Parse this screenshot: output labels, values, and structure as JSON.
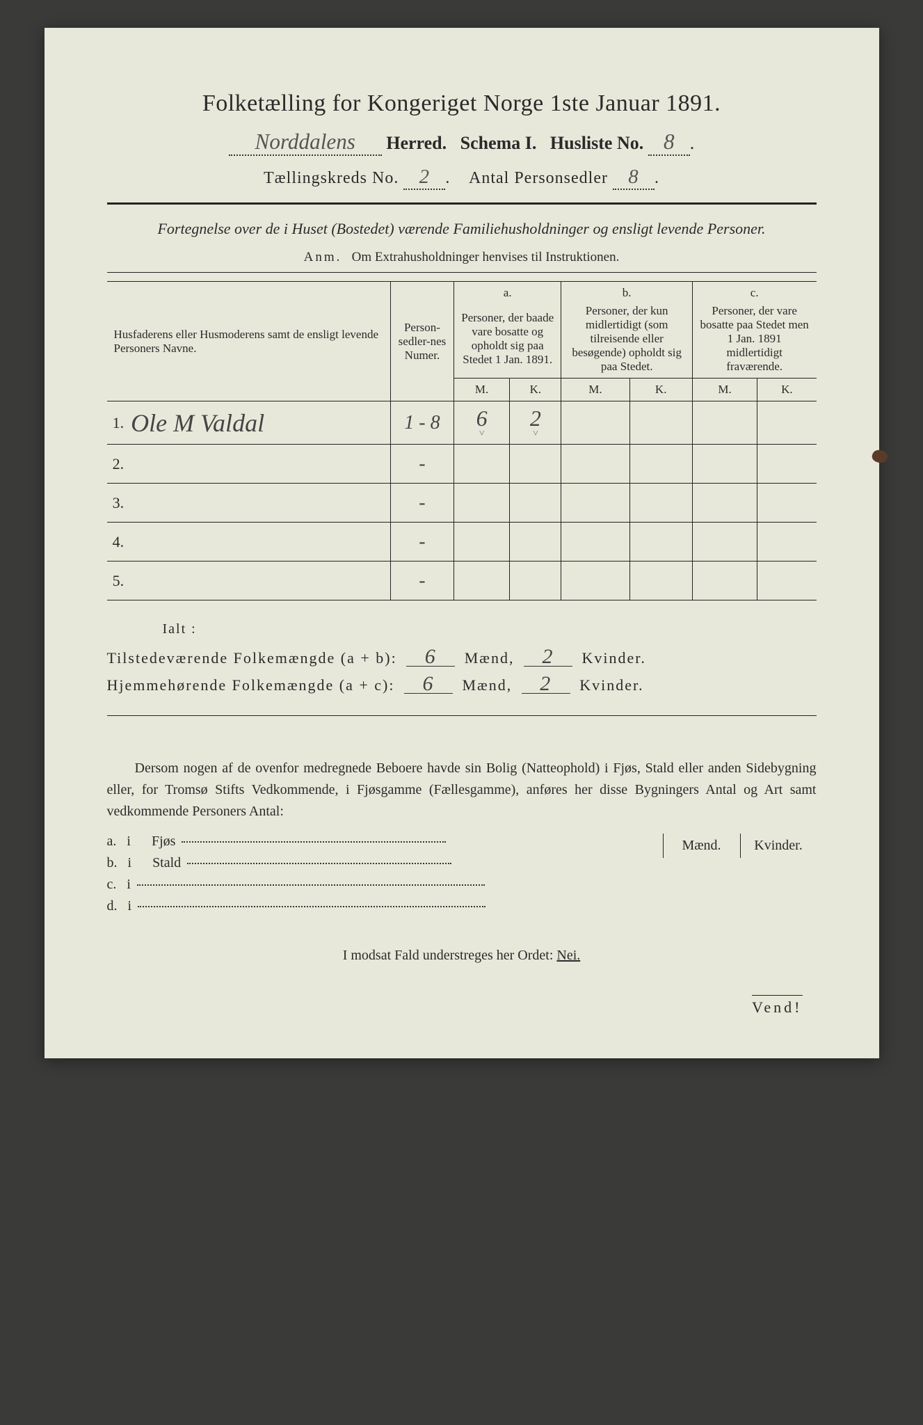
{
  "title": "Folketælling for Kongeriget Norge 1ste Januar 1891.",
  "header": {
    "herred_hand": "Norddalens",
    "herred_label": "Herred.",
    "schema_label": "Schema I.",
    "husliste_label": "Husliste No.",
    "husliste_no": "8",
    "kreds_label": "Tællingskreds No.",
    "kreds_no": "2",
    "antal_label": "Antal Personsedler",
    "antal_no": "8"
  },
  "subtitle": "Fortegnelse over de i Huset (Bostedet) værende Familiehusholdninger og ensligt levende Personer.",
  "anm_label": "Anm.",
  "anm_text": "Om Extrahusholdninger henvises til Instruktionen.",
  "table": {
    "col_name": "Husfaderens eller Husmoderens samt de ensligt levende Personers Navne.",
    "col_num": "Person-sedler-nes Numer.",
    "col_a_tag": "a.",
    "col_a": "Personer, der baade vare bosatte og opholdt sig paa Stedet 1 Jan. 1891.",
    "col_b_tag": "b.",
    "col_b": "Personer, der kun midlertidigt (som tilreisende eller besøgende) opholdt sig paa Stedet.",
    "col_c_tag": "c.",
    "col_c": "Personer, der vare bosatte paa Stedet men 1 Jan. 1891 midlertidigt fraværende.",
    "m": "M.",
    "k": "K.",
    "rows": [
      {
        "n": "1.",
        "name": "Ole M Valdal",
        "num": "1 - 8",
        "a_m": "6",
        "a_k": "2",
        "b_m": "",
        "b_k": "",
        "c_m": "",
        "c_k": ""
      },
      {
        "n": "2.",
        "name": "",
        "num": "-",
        "a_m": "",
        "a_k": "",
        "b_m": "",
        "b_k": "",
        "c_m": "",
        "c_k": ""
      },
      {
        "n": "3.",
        "name": "",
        "num": "-",
        "a_m": "",
        "a_k": "",
        "b_m": "",
        "b_k": "",
        "c_m": "",
        "c_k": ""
      },
      {
        "n": "4.",
        "name": "",
        "num": "-",
        "a_m": "",
        "a_k": "",
        "b_m": "",
        "b_k": "",
        "c_m": "",
        "c_k": ""
      },
      {
        "n": "5.",
        "name": "",
        "num": "-",
        "a_m": "",
        "a_k": "",
        "b_m": "",
        "b_k": "",
        "c_m": "",
        "c_k": ""
      }
    ]
  },
  "totals": {
    "ialt": "Ialt :",
    "row1_label": "Tilstedeværende Folkemængde (a + b):",
    "row2_label": "Hjemmehørende Folkemængde (a + c):",
    "maend": "Mænd,",
    "kvinder": "Kvinder.",
    "r1_m": "6",
    "r1_k": "2",
    "r2_m": "6",
    "r2_k": "2"
  },
  "para": "Dersom nogen af de ovenfor medregnede Beboere havde sin Bolig (Natteophold) i Fjøs, Stald eller anden Sidebygning eller, for Tromsø Stifts Vedkommende, i Fjøsgamme (Fællesgamme), anføres her disse Bygningers Antal og Art samt vedkommende Personers Antal:",
  "sb": {
    "maend": "Mænd.",
    "kvinder": "Kvinder.",
    "a": "a.",
    "a_label": "Fjøs",
    "b": "b.",
    "b_label": "Stald",
    "c": "c.",
    "d": "d.",
    "i": "i"
  },
  "nei": "I modsat Fald understreges her Ordet:",
  "nei_word": "Nei.",
  "vend": "Vend!",
  "colors": {
    "paper": "#e8e8da",
    "ink": "#2a2a2a",
    "hand": "#555"
  }
}
